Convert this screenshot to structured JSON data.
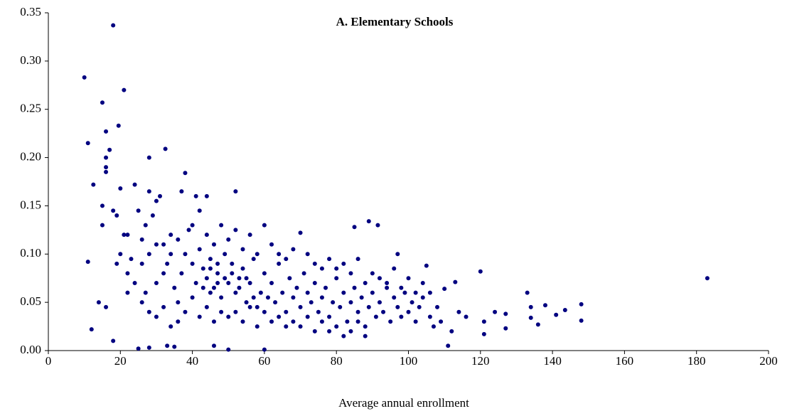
{
  "chart_data": {
    "type": "scatter",
    "title": "A. Elementary Schools",
    "xlabel": "Average annual enrollment",
    "color": "#000080",
    "xlim": [
      0,
      200
    ],
    "xticks": [
      0,
      20,
      40,
      60,
      80,
      100,
      120,
      140,
      160,
      180,
      200
    ],
    "ylim": [
      0,
      0.35
    ],
    "yticks": [
      {
        "value": 0,
        "label": "0.00"
      },
      {
        "value": 0.05,
        "label": "0.05"
      },
      {
        "value": 0.1,
        "label": "0.10"
      },
      {
        "value": 0.15,
        "label": "0.15"
      },
      {
        "value": 0.2,
        "label": "0.20"
      },
      {
        "value": 0.25,
        "label": "0.25"
      },
      {
        "value": 0.3,
        "label": "0.30"
      },
      {
        "value": 0.35,
        "label": "0.35"
      }
    ],
    "x": [
      18,
      10,
      21,
      15,
      19.5,
      16,
      11,
      17,
      16,
      28,
      32.5,
      38,
      12.5,
      183,
      148,
      148,
      141,
      143.5,
      138,
      136,
      133,
      134,
      134,
      127,
      127,
      124,
      121,
      120,
      121,
      111,
      113,
      110,
      105,
      97,
      89,
      91.5,
      85,
      70,
      60,
      52,
      44,
      41,
      37,
      24,
      20,
      12,
      11,
      18,
      25,
      28,
      33,
      35,
      46,
      50,
      60,
      14,
      16,
      15,
      15,
      16,
      16,
      18,
      19,
      21,
      22,
      20,
      19,
      23,
      22,
      26,
      27,
      28,
      30,
      31,
      29,
      25,
      27,
      26,
      28,
      30,
      32,
      33,
      34,
      35,
      36,
      37,
      38,
      39,
      40,
      41,
      42,
      43,
      44,
      45,
      46,
      47,
      48,
      49,
      50,
      51,
      52,
      53,
      54,
      55,
      56,
      57,
      58,
      59,
      60,
      61,
      62,
      63,
      64,
      65,
      66,
      67,
      68,
      69,
      70,
      71,
      72,
      73,
      74,
      75,
      76,
      77,
      78,
      79,
      80,
      81,
      82,
      83,
      84,
      85,
      86,
      87,
      88,
      89,
      90,
      91,
      92,
      93,
      94,
      95,
      96,
      97,
      98,
      99,
      100,
      101,
      102,
      103,
      104,
      106,
      107,
      108,
      109,
      112,
      114,
      116,
      30,
      32,
      34,
      36,
      38,
      40,
      42,
      44,
      46,
      48,
      50,
      52,
      54,
      56,
      58,
      60,
      62,
      64,
      66,
      68,
      70,
      72,
      74,
      76,
      78,
      80,
      82,
      84,
      86,
      88,
      44,
      46,
      48,
      50,
      52,
      54,
      56,
      58,
      62,
      64,
      66,
      68,
      72,
      74,
      76,
      78,
      80,
      82,
      84,
      86,
      88,
      90,
      92,
      94,
      96,
      98,
      100,
      102,
      104,
      106,
      22,
      24,
      26,
      28,
      30,
      32,
      34,
      36,
      40,
      42,
      45,
      47,
      43,
      45,
      47,
      49,
      51,
      53,
      55,
      57
    ],
    "values": [
      0.337,
      0.283,
      0.27,
      0.257,
      0.233,
      0.227,
      0.215,
      0.208,
      0.2,
      0.2,
      0.209,
      0.184,
      0.172,
      0.075,
      0.048,
      0.031,
      0.037,
      0.042,
      0.047,
      0.027,
      0.06,
      0.045,
      0.034,
      0.038,
      0.023,
      0.04,
      0.03,
      0.082,
      0.017,
      0.005,
      0.071,
      0.064,
      0.088,
      0.1,
      0.134,
      0.13,
      0.128,
      0.122,
      0.13,
      0.165,
      0.16,
      0.16,
      0.165,
      0.172,
      0.168,
      0.022,
      0.092,
      0.01,
      0.002,
      0.003,
      0.005,
      0.004,
      0.005,
      0.001,
      0.001,
      0.05,
      0.045,
      0.13,
      0.15,
      0.19,
      0.185,
      0.145,
      0.14,
      0.12,
      0.12,
      0.1,
      0.09,
      0.095,
      0.08,
      0.115,
      0.13,
      0.165,
      0.155,
      0.16,
      0.14,
      0.145,
      0.06,
      0.05,
      0.04,
      0.07,
      0.11,
      0.09,
      0.12,
      0.065,
      0.05,
      0.08,
      0.1,
      0.125,
      0.09,
      0.07,
      0.105,
      0.085,
      0.075,
      0.095,
      0.065,
      0.08,
      0.055,
      0.1,
      0.07,
      0.09,
      0.06,
      0.075,
      0.085,
      0.05,
      0.07,
      0.095,
      0.045,
      0.06,
      0.08,
      0.055,
      0.07,
      0.05,
      0.09,
      0.06,
      0.04,
      0.075,
      0.055,
      0.065,
      0.045,
      0.08,
      0.06,
      0.05,
      0.07,
      0.04,
      0.055,
      0.065,
      0.035,
      0.05,
      0.075,
      0.045,
      0.06,
      0.03,
      0.05,
      0.065,
      0.04,
      0.055,
      0.025,
      0.045,
      0.06,
      0.035,
      0.05,
      0.04,
      0.065,
      0.03,
      0.055,
      0.045,
      0.035,
      0.06,
      0.04,
      0.05,
      0.03,
      0.045,
      0.055,
      0.035,
      0.025,
      0.045,
      0.03,
      0.02,
      0.04,
      0.035,
      0.035,
      0.045,
      0.025,
      0.03,
      0.04,
      0.055,
      0.035,
      0.045,
      0.03,
      0.04,
      0.035,
      0.04,
      0.03,
      0.045,
      0.025,
      0.04,
      0.03,
      0.035,
      0.025,
      0.03,
      0.025,
      0.035,
      0.02,
      0.03,
      0.02,
      0.025,
      0.015,
      0.02,
      0.03,
      0.015,
      0.12,
      0.11,
      0.13,
      0.115,
      0.125,
      0.105,
      0.12,
      0.1,
      0.11,
      0.1,
      0.095,
      0.105,
      0.1,
      0.09,
      0.085,
      0.095,
      0.085,
      0.09,
      0.08,
      0.095,
      0.07,
      0.08,
      0.075,
      0.07,
      0.085,
      0.065,
      0.075,
      0.06,
      0.07,
      0.06,
      0.06,
      0.07,
      0.09,
      0.1,
      0.11,
      0.08,
      0.1,
      0.115,
      0.13,
      0.145,
      0.085,
      0.09,
      0.065,
      0.06,
      0.07,
      0.075,
      0.08,
      0.065,
      0.075,
      0.055
    ]
  }
}
